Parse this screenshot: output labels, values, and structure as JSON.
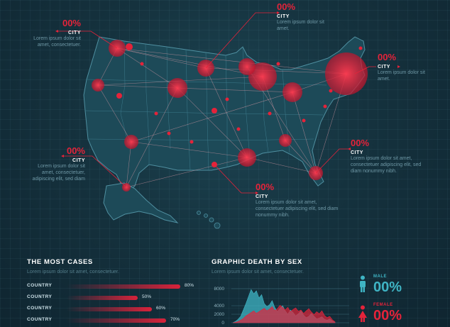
{
  "colors": {
    "accent": "#e4233a",
    "male": "#3fb4c4",
    "female": "#e4233a",
    "map": "#1f4d5c"
  },
  "callouts": [
    {
      "pct": "00%",
      "city": "CITY",
      "desc": "Lorem ipsum dolor sit amet, consectetuer."
    },
    {
      "pct": "00%",
      "city": "CITY",
      "desc": "Lorem ipsum dolor sit amet."
    },
    {
      "pct": "00%",
      "city": "CITY",
      "desc": "Lorem ipsum dolor sit amet."
    },
    {
      "pct": "00%",
      "city": "CITY",
      "desc": "Lorem ipsum dolor sit amet, consectetuer, adipiscing elit, sed diam"
    },
    {
      "pct": "00%",
      "city": "CITY",
      "desc": "Lorem ipsum dolor sit amet, consectetuer adipiscing elit, sed diam nonummy nibh."
    },
    {
      "pct": "00%",
      "city": "CITY",
      "desc": "Lorem ipsum dolor sit amet, consectetuer adipiscing elit, sed diam nonummy nibh."
    }
  ],
  "most_cases": {
    "title": "THE MOST CASES",
    "subtitle": "Lorem ipsum dolor sit amet, consectetuer.",
    "rows": [
      {
        "label": "COUNTRY",
        "value": 80,
        "text": "80%"
      },
      {
        "label": "COUNTRY",
        "value": 50,
        "text": "50%"
      },
      {
        "label": "COUNTRY",
        "value": 60,
        "text": "60%"
      },
      {
        "label": "COUNTRY",
        "value": 70,
        "text": "70%"
      }
    ]
  },
  "death_by_sex": {
    "title": "GRAPHIC DEATH BY SEX",
    "subtitle": "Lorem ipsum dolor sit amet, consectetuer.",
    "male_label": "MALE",
    "male_pct": "00%",
    "female_label": "FEMALE",
    "female_pct": "00%"
  },
  "chart_data": {
    "type": "area",
    "title": "GRAPHIC DEATH BY SEX",
    "ylim": [
      0,
      8000
    ],
    "yticks": [
      "8000",
      "4000",
      "2000",
      "0"
    ],
    "x": [
      0,
      1,
      2,
      3,
      4,
      5,
      6,
      7,
      8,
      9,
      10,
      11,
      12,
      13,
      14,
      15,
      16,
      17,
      18,
      19,
      20,
      21,
      22,
      23,
      24,
      25,
      26,
      27,
      28,
      29,
      30,
      31,
      32,
      33,
      34,
      35,
      36,
      37,
      38,
      39
    ],
    "series": [
      {
        "color": "#3fb4c4",
        "values": [
          0,
          300,
          800,
          1500,
          3000,
          4500,
          6200,
          7800,
          6800,
          7500,
          5800,
          6600,
          4500,
          3800,
          4200,
          5200,
          3600,
          2600,
          3400,
          4000,
          2800,
          2000,
          3000,
          2400,
          1600,
          2100,
          2800,
          1800,
          1200,
          1500,
          2200,
          1500,
          900,
          1100,
          1400,
          800,
          600,
          900,
          400,
          100
        ]
      },
      {
        "color": "#e4233a",
        "values": [
          0,
          100,
          300,
          600,
          1000,
          1600,
          2000,
          2400,
          2800,
          2200,
          2600,
          3000,
          3400,
          2800,
          3200,
          3800,
          2800,
          3300,
          4100,
          3600,
          3000,
          3600,
          2600,
          3100,
          3500,
          2700,
          3000,
          2200,
          2800,
          3300,
          2500,
          1900,
          2600,
          2100,
          2800,
          1700,
          1200,
          1500,
          700,
          200
        ]
      }
    ]
  }
}
